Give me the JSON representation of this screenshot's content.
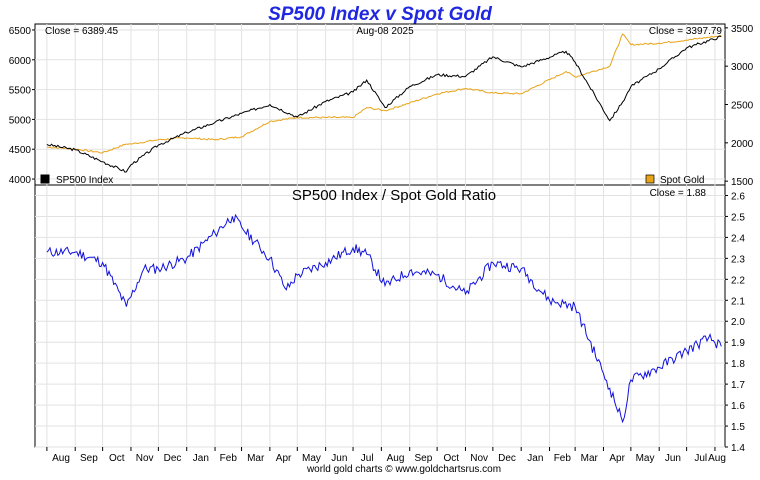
{
  "title": "SP500 Index v Spot Gold",
  "footer": "world gold charts © www.goldchartsrus.com",
  "colors": {
    "title": "#1f27e0",
    "sp500": "#000000",
    "gold": "#e8a317",
    "ratio": "#1111dd",
    "grid": "#e2e2e2",
    "frame": "#000000"
  },
  "chart_data": [
    {
      "type": "line",
      "panel": "top",
      "date_label": "Aug-08  2025",
      "left_close_label": "Close = 6389.45",
      "right_close_label": "Close = 3397.79",
      "grid": true,
      "legend": [
        {
          "name": "SP500 Index",
          "color": "#000000",
          "placement": "bottom-left"
        },
        {
          "name": "Spot Gold",
          "color": "#e8a317",
          "placement": "bottom-right"
        }
      ],
      "y_left": {
        "ticks": [
          4000,
          4500,
          5000,
          5500,
          6000,
          6500
        ],
        "range": [
          3900,
          6600
        ]
      },
      "y_right": {
        "ticks": [
          1500,
          2000,
          2500,
          3000,
          3500
        ],
        "range": [
          1450,
          3550
        ]
      },
      "x": [
        "2023-08-01",
        "2023-09-01",
        "2023-10-01",
        "2023-10-27",
        "2023-11-01",
        "2023-12-01",
        "2024-01-01",
        "2024-02-01",
        "2024-03-01",
        "2024-04-01",
        "2024-05-01",
        "2024-06-01",
        "2024-07-01",
        "2024-07-16",
        "2024-08-05",
        "2024-09-01",
        "2024-10-01",
        "2024-11-01",
        "2024-12-01",
        "2025-01-01",
        "2025-02-19",
        "2025-03-01",
        "2025-04-08",
        "2025-04-22",
        "2025-05-01",
        "2025-06-01",
        "2025-07-01",
        "2025-08-08"
      ],
      "series": [
        {
          "name": "SP500 Index",
          "axis": "left",
          "color": "#000000",
          "values": [
            4580,
            4490,
            4290,
            4120,
            4240,
            4570,
            4780,
            4950,
            5100,
            5250,
            5040,
            5300,
            5460,
            5660,
            5200,
            5550,
            5750,
            5720,
            6050,
            5880,
            6140,
            5960,
            4980,
            5290,
            5550,
            5850,
            6200,
            6389.45
          ]
        },
        {
          "name": "Spot Gold",
          "axis": "right",
          "color": "#e8a317",
          "values": [
            1945,
            1920,
            1870,
            1985,
            1985,
            2040,
            2065,
            2040,
            2080,
            2280,
            2330,
            2330,
            2330,
            2460,
            2420,
            2520,
            2640,
            2710,
            2650,
            2640,
            2930,
            2860,
            3000,
            3420,
            3280,
            3300,
            3340,
            3397.79
          ]
        }
      ]
    },
    {
      "type": "line",
      "panel": "bottom",
      "title": "SP500 Index  /  Spot Gold Ratio",
      "close_label": "Close = 1.88",
      "grid": true,
      "y_right": {
        "ticks": [
          1.4,
          1.5,
          1.6,
          1.7,
          1.8,
          1.9,
          2.0,
          2.1,
          2.2,
          2.3,
          2.4,
          2.5,
          2.6
        ],
        "range": [
          1.4,
          2.65
        ]
      },
      "x_ticks": [
        "Aug",
        "Sep",
        "Oct",
        "Nov",
        "Dec",
        "Jan",
        "Feb",
        "Mar",
        "Apr",
        "May",
        "Jun",
        "Jul",
        "Aug",
        "Sep",
        "Oct",
        "Nov",
        "Dec",
        "Jan",
        "Feb",
        "Mar",
        "Apr",
        "May",
        "Jun",
        "Jul",
        "Aug"
      ],
      "x": [
        "2023-08-01",
        "2023-09-01",
        "2023-10-01",
        "2023-10-27",
        "2023-11-15",
        "2023-12-01",
        "2024-01-01",
        "2024-02-01",
        "2024-02-20",
        "2024-03-01",
        "2024-04-01",
        "2024-04-19",
        "2024-05-01",
        "2024-06-01",
        "2024-07-01",
        "2024-07-16",
        "2024-08-05",
        "2024-09-01",
        "2024-10-01",
        "2024-11-01",
        "2024-12-01",
        "2025-01-01",
        "2025-02-01",
        "2025-03-01",
        "2025-04-01",
        "2025-04-08",
        "2025-04-22",
        "2025-05-01",
        "2025-06-01",
        "2025-07-01",
        "2025-07-25",
        "2025-08-08"
      ],
      "series": [
        {
          "name": "SP500 Index / Spot Gold Ratio",
          "color": "#1111dd",
          "values": [
            2.33,
            2.33,
            2.28,
            2.07,
            2.25,
            2.25,
            2.3,
            2.42,
            2.5,
            2.45,
            2.3,
            2.15,
            2.22,
            2.28,
            2.35,
            2.32,
            2.17,
            2.24,
            2.22,
            2.13,
            2.28,
            2.25,
            2.1,
            2.07,
            1.75,
            1.68,
            1.52,
            1.72,
            1.78,
            1.86,
            1.92,
            1.88
          ]
        }
      ]
    }
  ]
}
